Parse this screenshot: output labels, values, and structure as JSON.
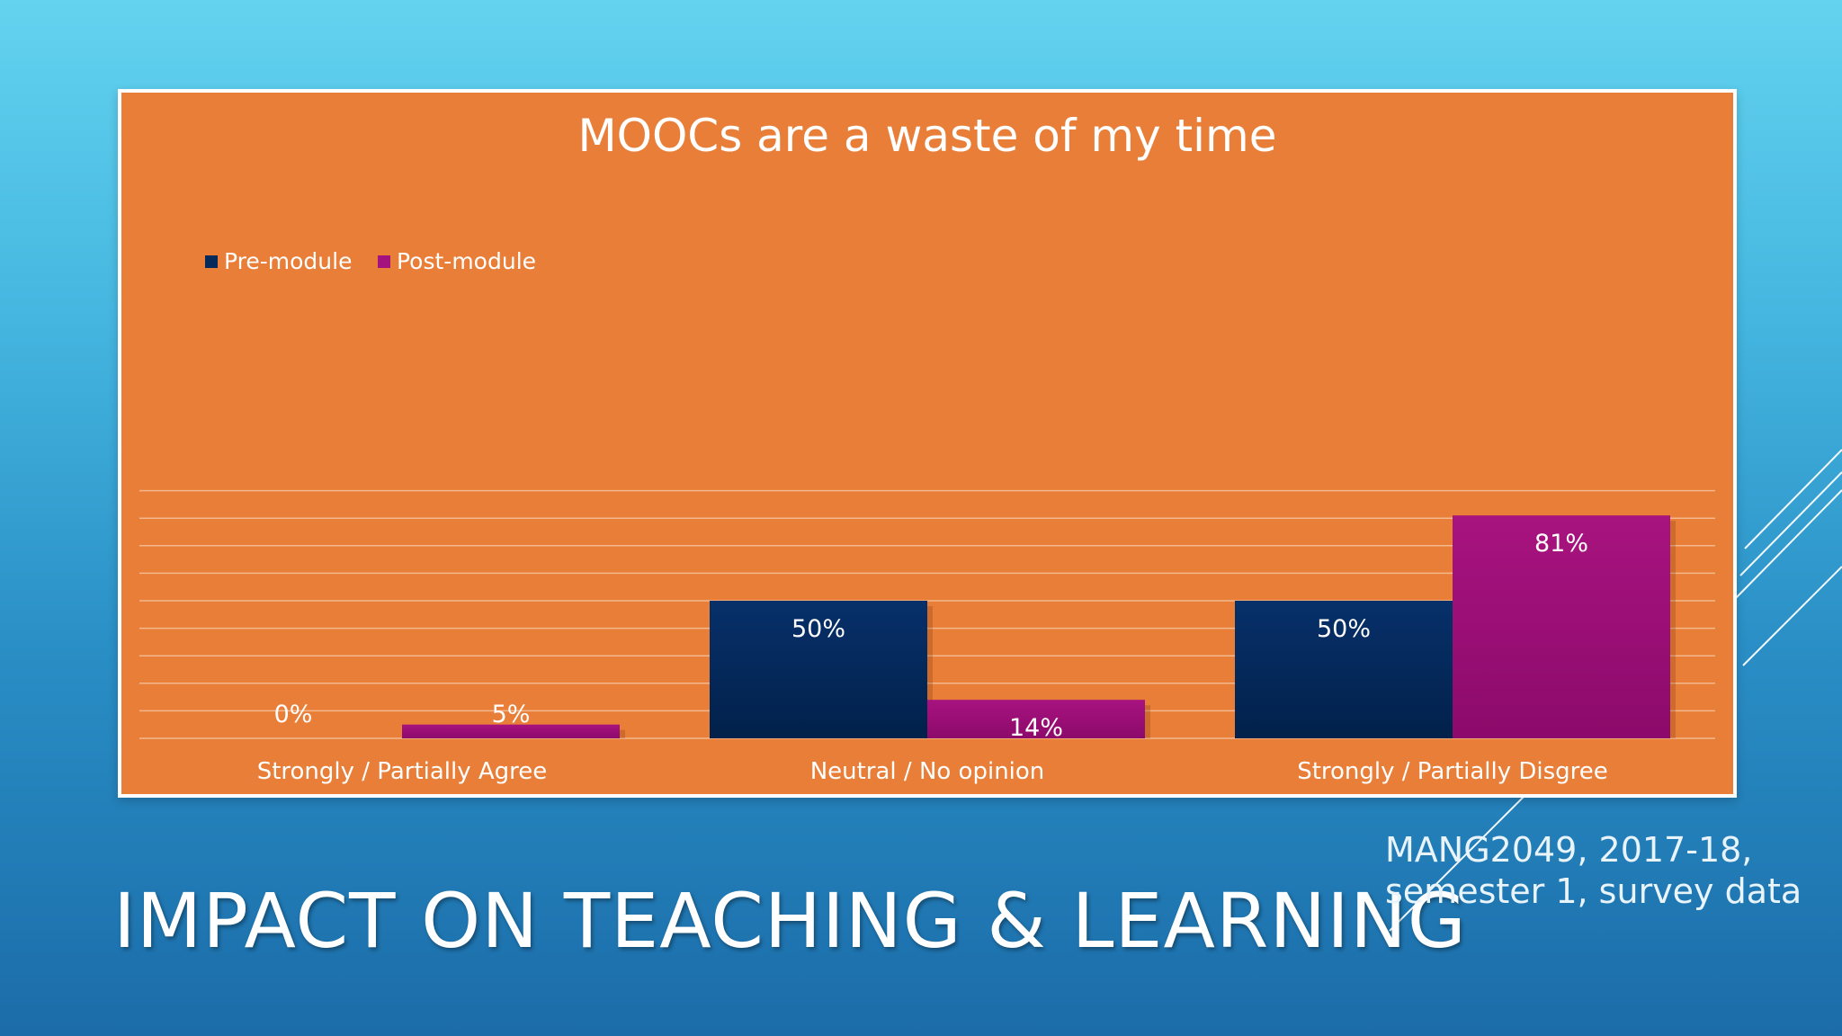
{
  "slide": {
    "title": "IMPACT ON TEACHING & LEARNING",
    "source_line1": "MANG2049, 2017-18,",
    "source_line2": "semester 1, survey data"
  },
  "colors": {
    "background_top": "#63d3ef",
    "background_bottom": "#1b6ca9",
    "chart_background": "#e87e37",
    "pre_module": "#042a5c",
    "post_module": "#a3127f",
    "text": "#ffffff"
  },
  "chart_data": {
    "type": "bar",
    "title": "MOOCs are a waste of my time",
    "categories": [
      "Strongly / Partially Agree",
      "Neutral / No opinion",
      "Strongly / Partially Disgree"
    ],
    "series": [
      {
        "name": "Pre-module",
        "values": [
          0,
          50,
          50
        ],
        "labels": [
          "0%",
          "50%",
          "50%"
        ]
      },
      {
        "name": "Post-module",
        "values": [
          5,
          14,
          81
        ],
        "labels": [
          "5%",
          "14%",
          "81%"
        ]
      }
    ],
    "ylim": [
      0,
      90
    ],
    "grid": true,
    "legend": "top-left"
  }
}
